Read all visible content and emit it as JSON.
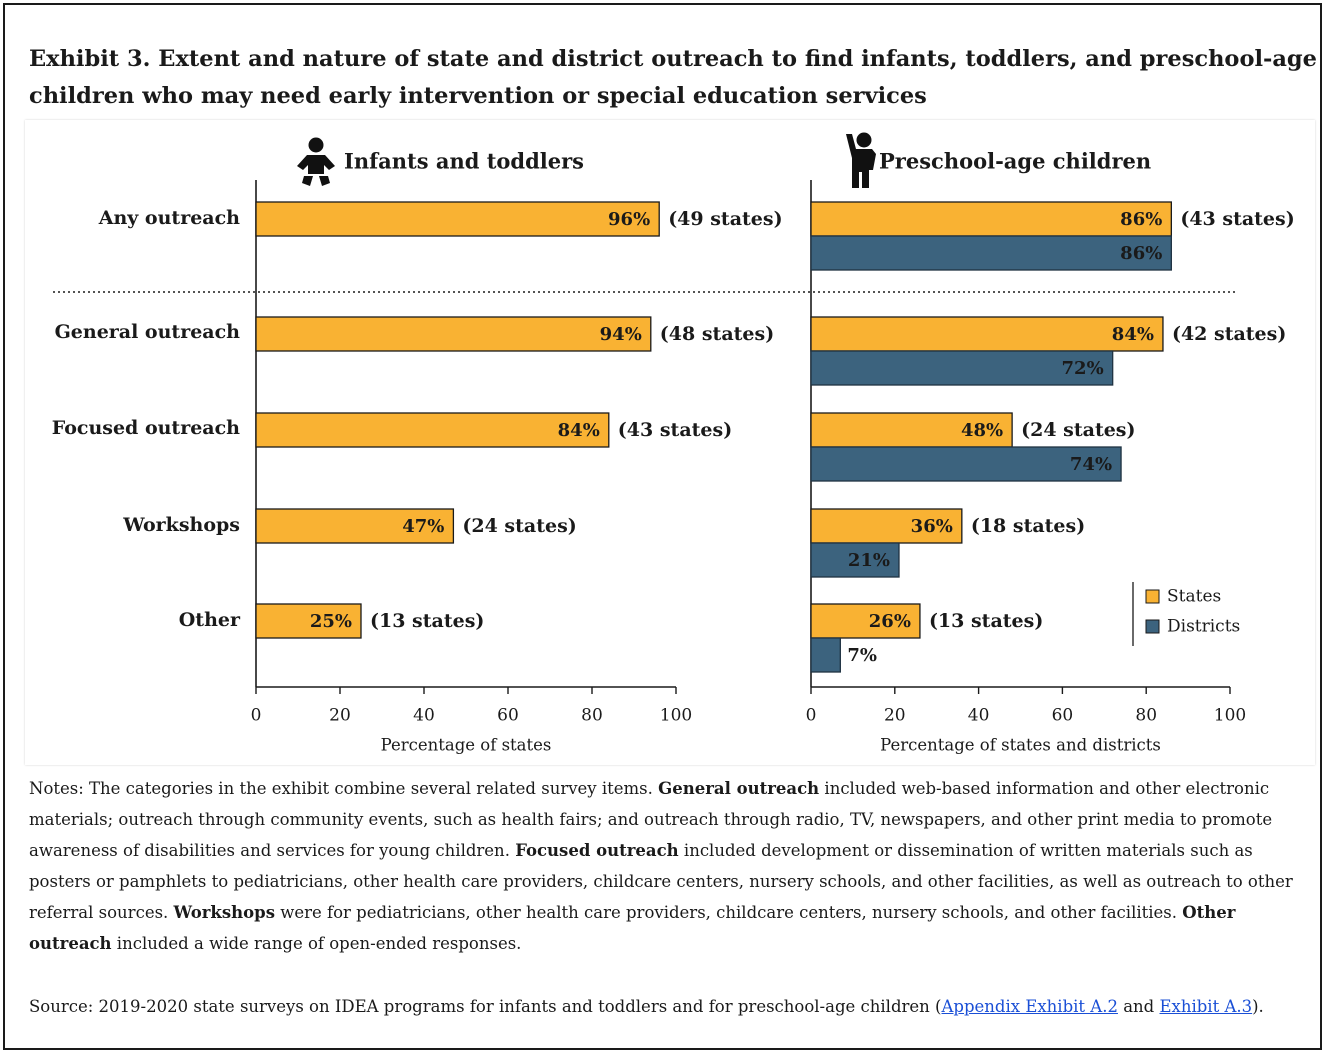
{
  "title": "Exhibit 3. Extent and nature of state and district outreach to find infants, toddlers, and preschool-age children who may need early intervention or special education services",
  "colors": {
    "states": "#F9B233",
    "districts": "#3C637E",
    "text": "#1a1a1a",
    "link": "#1a4fd6"
  },
  "icons": {
    "infants": "baby-icon",
    "preschool": "child-icon"
  },
  "chart_data": [
    {
      "type": "bar",
      "orientation": "horizontal",
      "title": "Infants and toddlers",
      "categories": [
        "Any outreach",
        "General outreach",
        "Focused outreach",
        "Workshops",
        "Other"
      ],
      "series": [
        {
          "name": "States",
          "values": [
            96,
            94,
            84,
            47,
            25
          ],
          "labels": [
            "96%",
            "94%",
            "84%",
            "47%",
            "25%"
          ],
          "notes": [
            "(49 states)",
            "(48 states)",
            "(43 states)",
            "(24 states)",
            "(13 states)"
          ]
        }
      ],
      "xlabel": "Percentage of states",
      "xlim": [
        0,
        100
      ],
      "xticks": [
        "0",
        "20",
        "40",
        "60",
        "80",
        "100"
      ],
      "grid": false
    },
    {
      "type": "bar",
      "orientation": "horizontal",
      "title": "Preschool-age children",
      "categories": [
        "Any outreach",
        "General outreach",
        "Focused outreach",
        "Workshops",
        "Other"
      ],
      "series": [
        {
          "name": "States",
          "values": [
            86,
            84,
            48,
            36,
            26
          ],
          "labels": [
            "86%",
            "84%",
            "48%",
            "36%",
            "26%"
          ],
          "notes": [
            "(43 states)",
            "(42 states)",
            "(24 states)",
            "(18 states)",
            "(13 states)"
          ]
        },
        {
          "name": "Districts",
          "values": [
            86,
            72,
            74,
            21,
            7
          ],
          "labels": [
            "86%",
            "72%",
            "74%",
            "21%",
            "7%"
          ]
        }
      ],
      "xlabel": "Percentage of states and districts",
      "xlim": [
        0,
        100
      ],
      "xticks": [
        "0",
        "20",
        "40",
        "60",
        "80",
        "100"
      ],
      "legend": {
        "position": "lower-right",
        "entries": [
          "States",
          "Districts"
        ]
      },
      "grid": false
    }
  ],
  "notes": {
    "prefix": "Notes: The categories in the exhibit combine several related survey items. ",
    "general_label": "General outreach",
    "general_text": " included web-based information and other electronic materials; outreach through community events, such as health fairs; and outreach through radio, TV, newspapers, and other print media to promote awareness of disabilities and services for young children. ",
    "focused_label": "Focused outreach",
    "focused_text": " included development or dissemination of written materials such as posters or pamphlets to pediatricians, other health care providers, childcare centers, nursery schools, and other facilities, as well as outreach to other referral sources. ",
    "workshops_label": "Workshops",
    "workshops_text": " were for pediatricians, other health care providers, childcare centers, nursery schools, and other facilities. ",
    "other_label": "Other outreach",
    "other_text": " included a wide range of open-ended responses."
  },
  "source": {
    "prefix": "Source: 2019-2020 state surveys on IDEA programs for infants and toddlers and for preschool-age children (",
    "link1": "Appendix Exhibit A.2",
    "middle": " and ",
    "link2": "Exhibit A.3",
    "suffix": ")."
  }
}
